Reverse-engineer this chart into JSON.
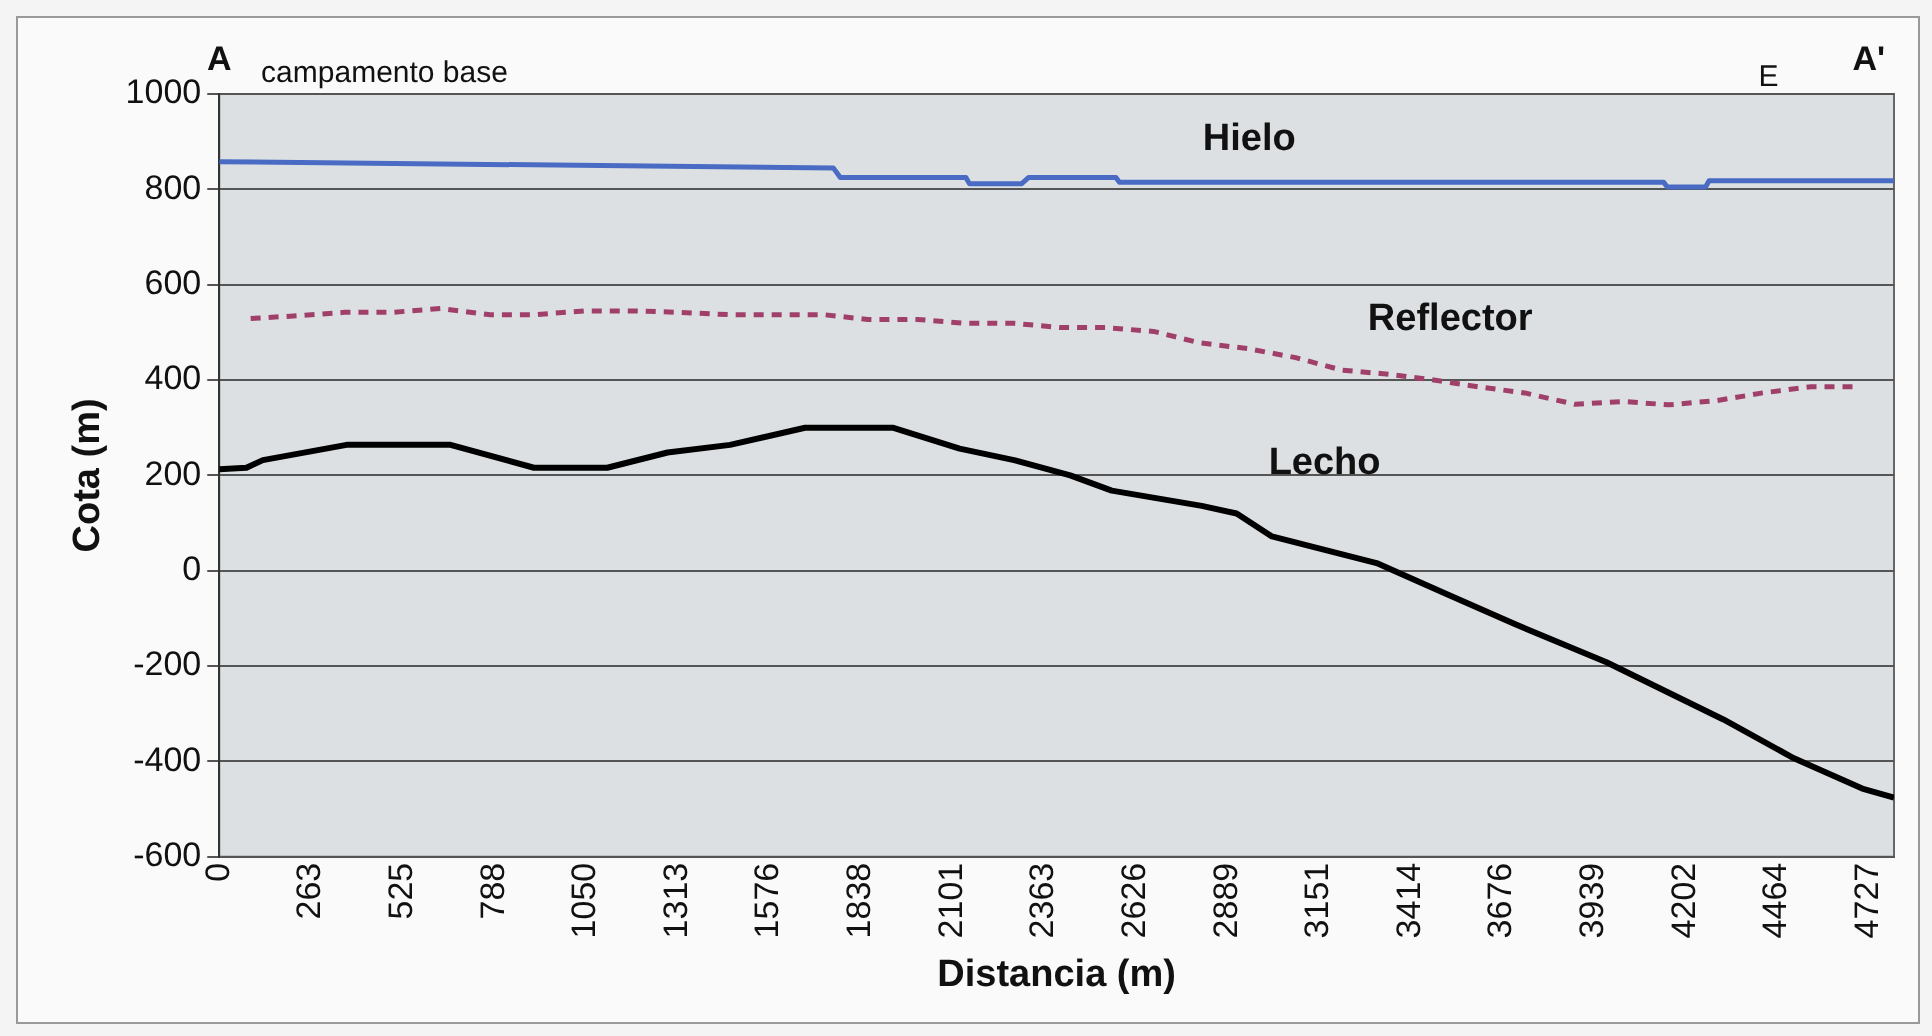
{
  "chart_data": {
    "type": "line",
    "xlabel": "Distancia (m)",
    "ylabel": "Cota (m)",
    "xlim": [
      0,
      4800
    ],
    "ylim": [
      -600,
      1000
    ],
    "xticks": [
      0,
      263,
      525,
      788,
      1050,
      1313,
      1576,
      1838,
      2101,
      2363,
      2626,
      2889,
      3151,
      3414,
      3676,
      3939,
      4202,
      4464,
      4727
    ],
    "yticks": [
      -600,
      -400,
      -200,
      0,
      200,
      400,
      600,
      800,
      1000
    ],
    "grid": "y",
    "legend": false,
    "marker": "none",
    "annotations": [
      "A",
      "campamento base",
      "E",
      "A'"
    ],
    "series": [
      {
        "name": "Hielo",
        "color": "#4a6bc4",
        "line_style": "solid",
        "x": [
          0,
          1760,
          1780,
          2140,
          2150,
          2300,
          2320,
          2570,
          2580,
          4140,
          4150,
          4260,
          4270,
          4800
        ],
        "values": [
          858,
          845,
          825,
          825,
          812,
          812,
          825,
          825,
          815,
          815,
          805,
          805,
          818,
          818
        ]
      },
      {
        "name": "Reflector",
        "color": "#a0406a",
        "line_style": "dashed",
        "x": [
          90,
          227,
          359,
          496,
          634,
          777,
          902,
          1046,
          1184,
          1321,
          1464,
          1590,
          1734,
          1859,
          2002,
          2140,
          2278,
          2409,
          2540,
          2678,
          2810,
          2947,
          3085,
          3216,
          3353,
          3473,
          3616,
          3742,
          3886,
          4023,
          4155,
          4293,
          4424,
          4562,
          4700
        ],
        "values": [
          529,
          535,
          542,
          542,
          550,
          537,
          537,
          545,
          545,
          542,
          537,
          537,
          537,
          527,
          527,
          519,
          519,
          510,
          510,
          502,
          478,
          466,
          447,
          421,
          412,
          401,
          385,
          373,
          349,
          355,
          348,
          357,
          373,
          386,
          386
        ]
      },
      {
        "name": "Lecho",
        "color": "#000000",
        "line_style": "solid",
        "x": [
          0,
          78,
          125,
          365,
          663,
          902,
          1112,
          1285,
          1464,
          1679,
          1930,
          2122,
          2278,
          2439,
          2558,
          2816,
          2916,
          3017,
          3317,
          3514,
          3713,
          3976,
          4311,
          4512,
          4709,
          4800
        ],
        "values": [
          213,
          216,
          232,
          264,
          264,
          216,
          216,
          248,
          264,
          300,
          300,
          256,
          232,
          200,
          168,
          136,
          120,
          72,
          16,
          -48,
          -112,
          -192,
          -312,
          -393,
          -457,
          -476
        ]
      }
    ]
  }
}
